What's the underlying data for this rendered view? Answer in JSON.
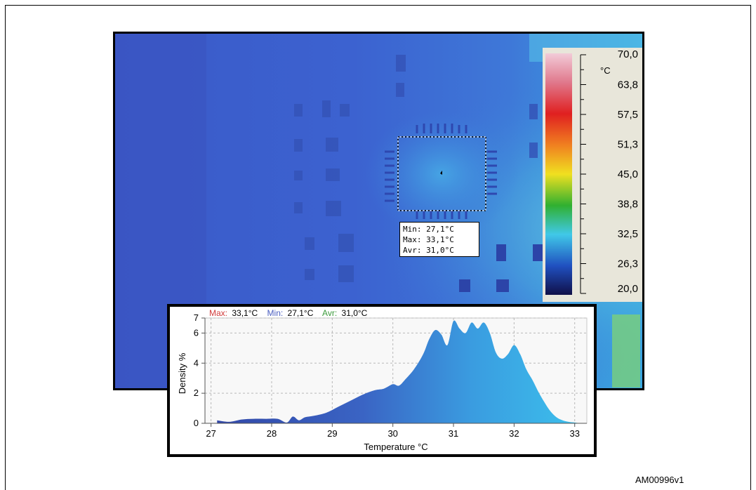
{
  "figure_id": "AM00996v1",
  "roi": {
    "min": "Min: 27,1°C",
    "max": "Max: 33,1°C",
    "avr": "Avr: 31,0°C"
  },
  "scale": {
    "unit": "°C",
    "ticks": [
      "70,0",
      "63,8",
      "57,5",
      "51,3",
      "45,0",
      "38,8",
      "32,5",
      "26,3",
      "20,0"
    ],
    "colors_top_to_bottom": [
      "#f0c8d4",
      "#e04a5c",
      "#e02020",
      "#f07020",
      "#f0d020",
      "#30b030",
      "#30c0e0",
      "#2050c0",
      "#101040"
    ]
  },
  "histogram": {
    "max_key": "Max:",
    "max_val": "33,1°C",
    "min_key": "Min:",
    "min_val": "27,1°C",
    "avr_key": "Avr:",
    "avr_val": "31,0°C"
  },
  "chart_data": {
    "type": "area",
    "xlabel": "Temperature °C",
    "ylabel": "Density %",
    "xlim": [
      26.9,
      33.2
    ],
    "ylim": [
      0,
      7
    ],
    "x_ticks": [
      "27",
      "28",
      "29",
      "30",
      "31",
      "32",
      "33"
    ],
    "y_ticks": [
      "0",
      "2",
      "4",
      "6",
      "7"
    ],
    "grid": true,
    "x": [
      27.1,
      27.3,
      27.5,
      27.7,
      27.9,
      28.1,
      28.25,
      28.35,
      28.45,
      28.55,
      28.7,
      28.9,
      29.1,
      29.3,
      29.5,
      29.7,
      29.85,
      30.0,
      30.1,
      30.2,
      30.35,
      30.5,
      30.6,
      30.7,
      30.8,
      30.9,
      31.0,
      31.1,
      31.2,
      31.3,
      31.4,
      31.5,
      31.6,
      31.7,
      31.8,
      31.9,
      32.0,
      32.1,
      32.2,
      32.3,
      32.4,
      32.5,
      32.6,
      32.7,
      32.8,
      32.9,
      33.0,
      33.1
    ],
    "values": [
      0.2,
      0.1,
      0.25,
      0.3,
      0.3,
      0.3,
      0.05,
      0.45,
      0.2,
      0.4,
      0.5,
      0.7,
      1.1,
      1.5,
      1.9,
      2.2,
      2.3,
      2.6,
      2.5,
      2.9,
      3.6,
      4.6,
      5.6,
      6.2,
      5.9,
      5.2,
      6.8,
      6.3,
      6.0,
      6.7,
      6.3,
      6.7,
      6.0,
      4.7,
      4.3,
      4.6,
      5.2,
      4.6,
      3.6,
      2.9,
      2.1,
      1.4,
      0.8,
      0.4,
      0.2,
      0.1,
      0.05,
      0.0
    ]
  }
}
